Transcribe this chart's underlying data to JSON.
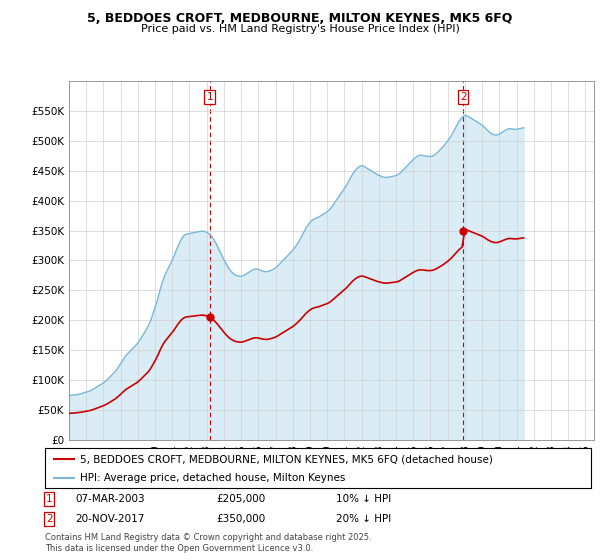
{
  "title1": "5, BEDDOES CROFT, MEDBOURNE, MILTON KEYNES, MK5 6FQ",
  "title2": "Price paid vs. HM Land Registry's House Price Index (HPI)",
  "legend1": "5, BEDDOES CROFT, MEDBOURNE, MILTON KEYNES, MK5 6FQ (detached house)",
  "legend2": "HPI: Average price, detached house, Milton Keynes",
  "annotation1_date": "07-MAR-2003",
  "annotation1_price": "£205,000",
  "annotation1_hpi": "10% ↓ HPI",
  "annotation2_date": "20-NOV-2017",
  "annotation2_price": "£350,000",
  "annotation2_hpi": "20% ↓ HPI",
  "footer": "Contains HM Land Registry data © Crown copyright and database right 2025.\nThis data is licensed under the Open Government Licence v3.0.",
  "hpi_color": "#7ab8d9",
  "hpi_fill_color": "#daedf7",
  "price_color": "#cc0000",
  "annotation_color": "#cc0000",
  "ylim": [
    0,
    600000
  ],
  "yticks": [
    0,
    50000,
    100000,
    150000,
    200000,
    250000,
    300000,
    350000,
    400000,
    450000,
    500000,
    550000
  ],
  "marker1_year": 2003.17,
  "marker1_value": 205000,
  "marker2_year": 2017.9,
  "marker2_value": 350000,
  "xmin": 1995,
  "xmax": 2025.5,
  "hpi_monthly": [
    73000,
    74000,
    74200,
    74500,
    74800,
    75200,
    75500,
    76000,
    76500,
    77200,
    78000,
    78800,
    79500,
    80200,
    81000,
    82000,
    83000,
    84500,
    86000,
    87500,
    89000,
    90500,
    92000,
    93500,
    95000,
    97000,
    99000,
    101000,
    103500,
    106000,
    108500,
    111000,
    113500,
    116500,
    120000,
    123500,
    127000,
    131000,
    135000,
    138500,
    141500,
    144000,
    146500,
    149000,
    151500,
    154000,
    156500,
    159000,
    162000,
    165500,
    169000,
    173000,
    177000,
    181000,
    185000,
    189000,
    194000,
    200000,
    207000,
    214000,
    221000,
    229000,
    237000,
    246000,
    255000,
    263000,
    270000,
    276000,
    281000,
    286000,
    291000,
    296000,
    301000,
    306000,
    312000,
    318000,
    324000,
    329000,
    334000,
    338000,
    341000,
    343000,
    344000,
    344500,
    345000,
    345500,
    346000,
    346500,
    347000,
    347500,
    348000,
    348500,
    349000,
    349000,
    348500,
    348000,
    347000,
    345500,
    343500,
    341000,
    338000,
    334500,
    330500,
    326000,
    321000,
    316000,
    311000,
    306000,
    301000,
    296500,
    292000,
    288000,
    284500,
    281500,
    279000,
    277000,
    275500,
    274500,
    274000,
    273500,
    273500,
    274000,
    275000,
    276500,
    278000,
    279500,
    281000,
    282500,
    284000,
    285000,
    285500,
    285500,
    285000,
    284000,
    283000,
    282000,
    281500,
    281000,
    281000,
    281500,
    282500,
    283500,
    284500,
    286000,
    287500,
    289500,
    292000,
    294500,
    297000,
    299500,
    302000,
    304500,
    307000,
    309500,
    312000,
    314500,
    317000,
    320000,
    323500,
    327000,
    331000,
    335000,
    339500,
    344000,
    348500,
    353000,
    357000,
    360500,
    363500,
    366000,
    368000,
    369500,
    370500,
    371500,
    372500,
    374000,
    375500,
    377000,
    378500,
    380000,
    381500,
    383500,
    386000,
    389000,
    392500,
    396000,
    399500,
    403000,
    406500,
    410000,
    413500,
    417000,
    420500,
    424000,
    428000,
    432500,
    437000,
    441500,
    445500,
    449000,
    452000,
    454500,
    456500,
    458000,
    458500,
    458000,
    457000,
    455500,
    454000,
    452500,
    451000,
    449500,
    448000,
    446500,
    445000,
    443500,
    442500,
    441500,
    440500,
    439500,
    439000,
    439000,
    439000,
    439500,
    440000,
    440500,
    441000,
    441500,
    442000,
    443000,
    444500,
    446500,
    449000,
    451500,
    454000,
    456500,
    459000,
    461500,
    464000,
    466500,
    469000,
    471000,
    473000,
    474500,
    475500,
    476000,
    476000,
    475500,
    475000,
    474500,
    474000,
    474000,
    474000,
    474500,
    475500,
    477000,
    479000,
    481000,
    483500,
    486000,
    488500,
    491000,
    494000,
    497000,
    500000,
    503500,
    507000,
    511000,
    515500,
    520000,
    524500,
    529000,
    533000,
    536500,
    539500,
    541500,
    542500,
    542500,
    541500,
    540000,
    538500,
    537000,
    535500,
    534000,
    532500,
    531000,
    529500,
    528000,
    526500,
    524500,
    522000,
    519500,
    517000,
    515000,
    513000,
    511500,
    510500,
    510000,
    510000,
    510500,
    511500,
    513000,
    514500,
    516000,
    517500,
    519000,
    520000,
    520500,
    520500,
    520000,
    519500,
    519500,
    519500,
    520000,
    520500,
    521000,
    521500,
    522000
  ],
  "hpi_start_year": 1995.0,
  "hpi_month_step": 0.08333333333
}
